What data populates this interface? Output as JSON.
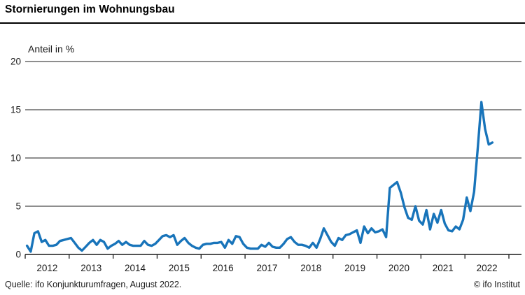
{
  "header": {
    "title": "Stornierungen im Wohnungsbau"
  },
  "footer": {
    "source": "Quelle: ifo Konjunkturumfragen, August 2022.",
    "copyright": "© ifo Institut"
  },
  "colors": {
    "line": "#1874BA",
    "gridline": "#4b4b4b",
    "axis": "#1a1a1a",
    "text": "#1a1a1a",
    "title_rule": "#000000"
  },
  "chart_data": {
    "type": "line",
    "title": "Stornierungen im Wohnungsbau",
    "ylabel": "Anteil in %",
    "xlabel": "",
    "ylim": [
      0,
      20
    ],
    "yticks": [
      0,
      5,
      10,
      15,
      20
    ],
    "grid": true,
    "legend_position": "none",
    "x_frequency": "monthly",
    "x_start": "2012-01",
    "x_end": "2022-08",
    "x_year_labels": [
      "2012",
      "2013",
      "2014",
      "2015",
      "2016",
      "2017",
      "2018",
      "2019",
      "2020",
      "2021",
      "2022"
    ],
    "series": [
      {
        "start": "2012-01",
        "values": [
          0.9,
          0.3,
          2.2,
          2.4,
          1.3,
          1.5,
          0.9,
          0.9,
          1.0,
          1.4,
          1.5,
          1.6,
          1.7,
          1.2,
          0.7,
          0.4,
          0.8,
          1.2,
          1.5,
          1.0,
          1.5,
          1.3,
          0.6,
          0.9,
          1.1,
          1.4,
          1.0,
          1.3,
          1.0,
          0.9,
          0.9,
          0.9,
          1.4,
          1.0,
          0.9,
          1.1,
          1.5,
          1.9,
          2.0,
          1.8,
          2.0,
          1.0,
          1.4,
          1.7,
          1.2,
          0.9,
          0.7,
          0.6,
          1.0,
          1.1,
          1.1,
          1.2,
          1.2,
          1.3,
          0.7,
          1.5,
          1.1,
          1.9,
          1.8,
          1.1,
          0.7,
          0.6,
          0.6,
          0.6,
          1.0,
          0.8,
          1.2,
          0.8,
          0.7,
          0.7,
          1.1,
          1.6,
          1.8,
          1.3,
          1.0,
          1.0,
          0.9,
          0.7,
          1.2,
          0.7,
          1.6,
          2.7,
          2.0,
          1.3,
          0.9,
          1.7,
          1.5,
          2.0,
          2.1,
          2.3,
          2.5,
          1.2,
          2.9,
          2.2,
          2.7,
          2.3,
          2.4,
          2.6,
          1.8,
          6.9,
          7.2,
          7.5,
          6.4,
          4.9,
          3.8,
          3.6,
          5.0,
          3.5,
          3.1,
          4.6,
          2.6,
          4.2,
          3.3,
          4.6,
          3.2,
          2.5,
          2.4,
          2.9,
          2.6,
          3.6,
          5.9,
          4.5,
          6.5,
          11.0,
          15.8,
          13.0,
          11.4,
          11.6
        ]
      }
    ]
  }
}
